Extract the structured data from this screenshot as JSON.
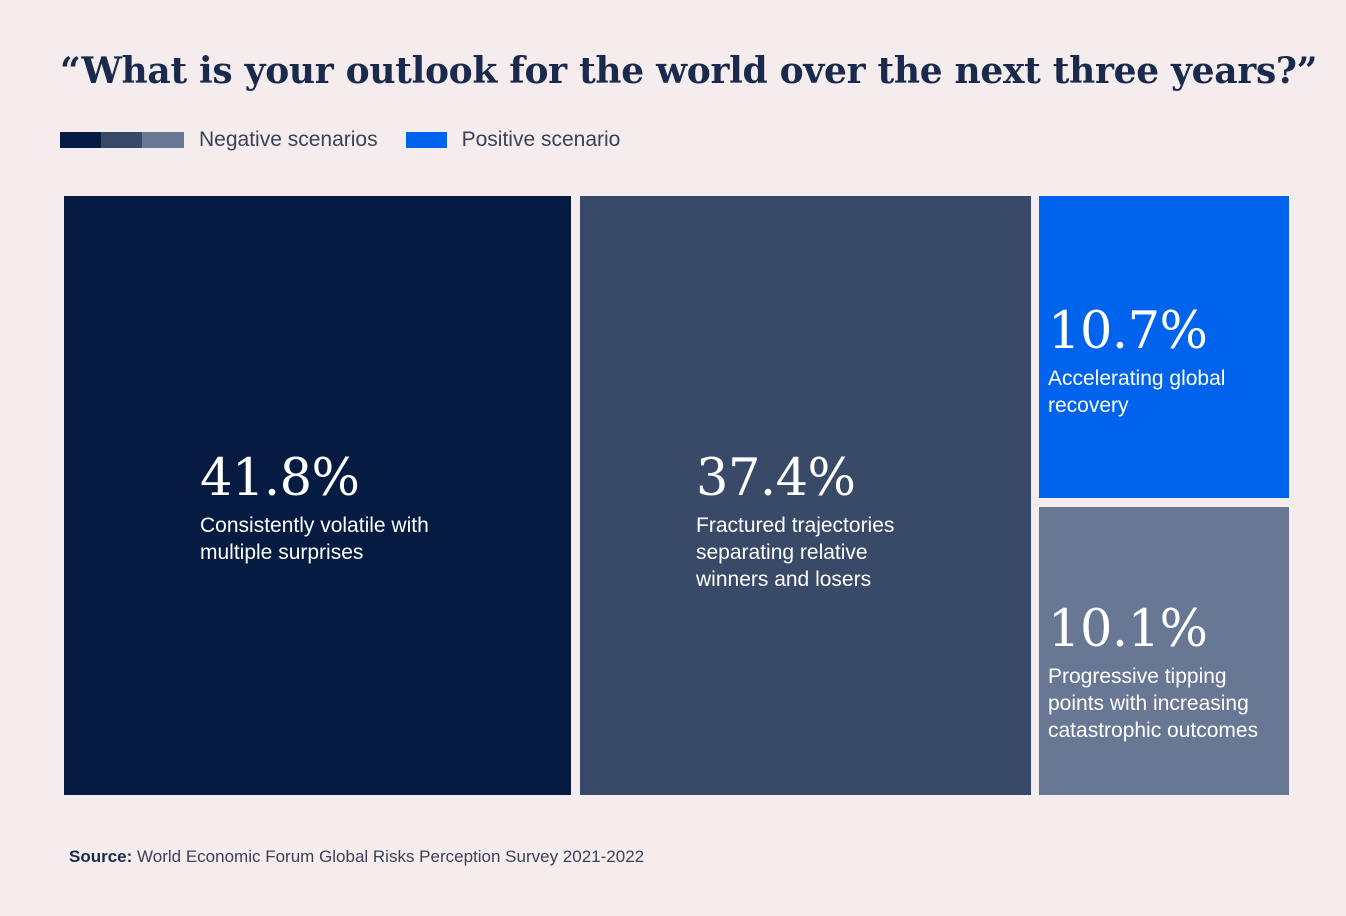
{
  "header": {
    "title": "“What is your outlook for the world over the next three years?”"
  },
  "legend": {
    "items": [
      {
        "label": "Negative scenarios",
        "colors": [
          "#051b42",
          "#384a68",
          "#687793"
        ]
      },
      {
        "label": "Positive scenario",
        "colors": [
          "#0063ed"
        ]
      }
    ]
  },
  "chart_data": {
    "type": "treemap",
    "title": "“What is your outlook for the world over the next three years?”",
    "unit": "%",
    "legend": [
      "Negative scenarios",
      "Positive scenario"
    ],
    "items": [
      {
        "label": "41.8%",
        "value": 41.8,
        "description": "Consistently volatile with multiple surprises",
        "category": "Negative scenarios",
        "color": "#051b42"
      },
      {
        "label": "37.4%",
        "value": 37.4,
        "description": "Fractured trajectories separating relative winners and losers",
        "category": "Negative scenarios",
        "color": "#384a68"
      },
      {
        "label": "10.7%",
        "value": 10.7,
        "description": "Accelerating global recovery",
        "category": "Positive scenario",
        "color": "#0063ed"
      },
      {
        "label": "10.1%",
        "value": 10.1,
        "description": "Progressive tipping points with increasing catastrophic outcomes",
        "category": "Negative scenarios",
        "color": "#687793"
      }
    ]
  },
  "footer": {
    "source_label": "Source:",
    "source_text": "World Economic Forum Global Risks Perception Survey 2021-2022"
  }
}
